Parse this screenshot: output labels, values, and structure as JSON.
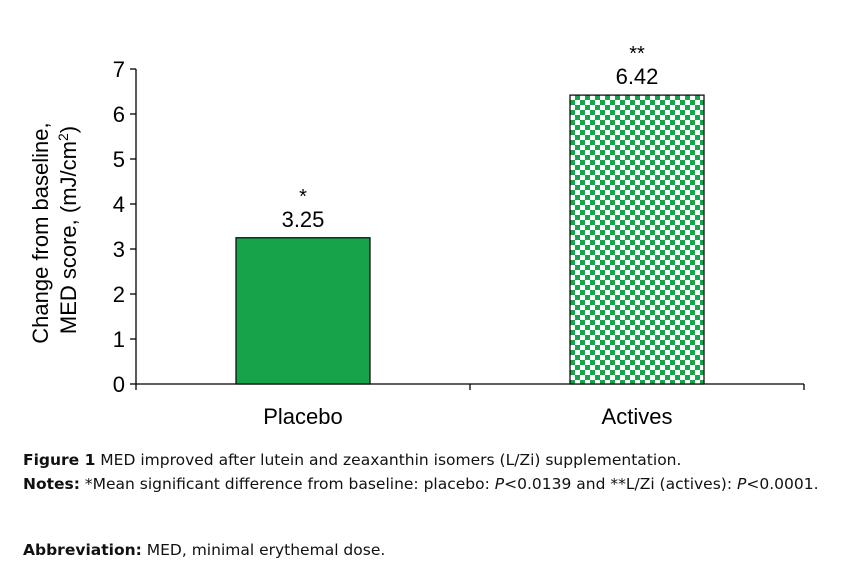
{
  "chart_data": {
    "type": "bar",
    "categories": [
      "Placebo",
      "Actives"
    ],
    "values": [
      3.25,
      6.42
    ],
    "value_labels": [
      "3.25",
      "6.42"
    ],
    "significance_marks": [
      "*",
      "**"
    ],
    "bar_styles": [
      "solid",
      "checkered"
    ],
    "ylim": [
      0,
      7
    ],
    "yticks": [
      0,
      1,
      2,
      3,
      4,
      5,
      6,
      7
    ],
    "ylabel_line1": "Change from baseline,",
    "ylabel_line2_prefix": "MED score, (mJ/cm",
    "ylabel_line2_sup": "2",
    "ylabel_line2_suffix": ")",
    "xlabel": "",
    "grid": false,
    "colors": {
      "bar": "#16a34a",
      "edge": "#111111",
      "checker_light": "#ffffff",
      "axis": "#000000"
    }
  },
  "caption": {
    "figure_label": "Figure 1",
    "figure_text": " MED improved after lutein and zeaxanthin isomers (L/Zi) supplementation.",
    "notes_label": "Notes:",
    "notes_part1": " *Mean significant difference from baseline: placebo: ",
    "p_symbol": "P",
    "notes_part2": "<0.0139 and **L/Zi (actives): ",
    "notes_part3": "<0.0001.",
    "abbr_label": "Abbreviation:",
    "abbr_text": " MED, minimal erythemal dose."
  }
}
